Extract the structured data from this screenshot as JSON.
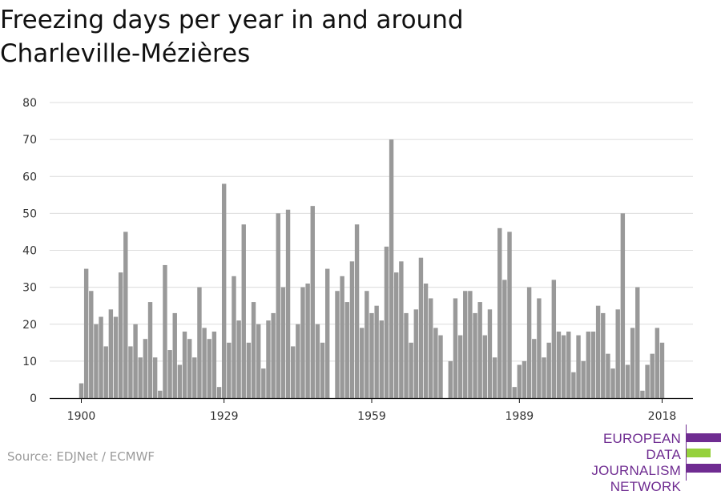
{
  "title": {
    "line1": "Freezing days per year in and around",
    "line2": "Charleville-Mézières"
  },
  "source": "Source: EDJNet / ECMWF",
  "logo": {
    "line1": "EUROPEAN",
    "line2": "DATA JOURNALISM",
    "line3": "NETWORK",
    "colors": {
      "purple": "#6f2c91",
      "green": "#95d13c"
    }
  },
  "chart_data": {
    "type": "bar",
    "title": "Freezing days per year in and around Charleville-Mézières",
    "xlabel": "",
    "ylabel": "",
    "ylim": [
      0,
      80
    ],
    "yticks": [
      0,
      10,
      20,
      30,
      40,
      50,
      60,
      70,
      80
    ],
    "xticks": [
      "1900",
      "1929",
      "1959",
      "1989",
      "2018"
    ],
    "grid": true,
    "bar_color": "#999999",
    "x": [
      1900,
      1901,
      1902,
      1903,
      1904,
      1905,
      1906,
      1907,
      1908,
      1909,
      1910,
      1911,
      1912,
      1913,
      1914,
      1915,
      1916,
      1917,
      1918,
      1919,
      1920,
      1921,
      1922,
      1923,
      1924,
      1925,
      1926,
      1927,
      1928,
      1929,
      1930,
      1931,
      1932,
      1933,
      1934,
      1935,
      1936,
      1937,
      1938,
      1939,
      1940,
      1941,
      1942,
      1943,
      1944,
      1945,
      1946,
      1947,
      1948,
      1949,
      1950,
      1951,
      1952,
      1953,
      1954,
      1955,
      1956,
      1957,
      1958,
      1959,
      1960,
      1961,
      1962,
      1963,
      1964,
      1965,
      1966,
      1967,
      1968,
      1969,
      1970,
      1971,
      1972,
      1973,
      1974,
      1975,
      1976,
      1977,
      1978,
      1979,
      1980,
      1981,
      1982,
      1983,
      1984,
      1985,
      1986,
      1987,
      1988,
      1989,
      1990,
      1991,
      1992,
      1993,
      1994,
      1995,
      1996,
      1997,
      1998,
      1999,
      2000,
      2001,
      2002,
      2003,
      2004,
      2005,
      2006,
      2007,
      2008,
      2009,
      2010,
      2011,
      2012,
      2013,
      2014,
      2015,
      2016,
      2017,
      2018
    ],
    "values": [
      4,
      35,
      29,
      20,
      22,
      14,
      24,
      22,
      34,
      45,
      14,
      20,
      11,
      16,
      26,
      11,
      2,
      36,
      13,
      23,
      9,
      18,
      16,
      11,
      30,
      19,
      16,
      18,
      3,
      58,
      15,
      33,
      21,
      47,
      15,
      26,
      20,
      8,
      21,
      23,
      50,
      30,
      51,
      14,
      20,
      30,
      31,
      52,
      20,
      15,
      35,
      0,
      29,
      33,
      26,
      37,
      47,
      19,
      29,
      23,
      25,
      21,
      41,
      70,
      34,
      37,
      23,
      15,
      24,
      38,
      31,
      27,
      19,
      17,
      0,
      10,
      27,
      17,
      29,
      29,
      23,
      26,
      17,
      24,
      11,
      46,
      32,
      45,
      3,
      9,
      10,
      30,
      16,
      27,
      11,
      15,
      32,
      18,
      17,
      18,
      7,
      17,
      10,
      18,
      18,
      25,
      23,
      12,
      8,
      24,
      50,
      9,
      19,
      30,
      2,
      9,
      12,
      19,
      15
    ]
  }
}
